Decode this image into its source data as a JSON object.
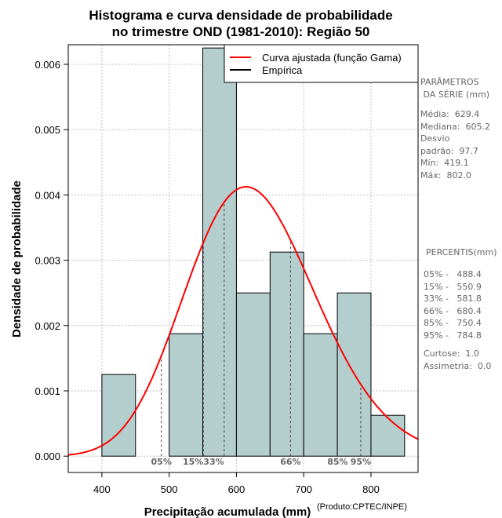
{
  "chart_data": {
    "type": "bar",
    "title": [
      "Histograma e curva densidade de probabilidade",
      "no trimestre OND (1981-2010): Região 50"
    ],
    "xlabel": "Precipitação acumulada (mm)",
    "ylabel": "Densidade de probabilidade",
    "xlim": [
      350,
      870
    ],
    "ylim": [
      -0.00025,
      0.0063
    ],
    "xticks": [
      400,
      500,
      600,
      700,
      800
    ],
    "yticks": [
      0.0,
      0.001,
      0.002,
      0.003,
      0.004,
      0.005,
      0.006
    ],
    "ytick_labels": [
      "0.000",
      "0.001",
      "0.002",
      "0.003",
      "0.004",
      "0.005",
      "0.006"
    ],
    "grid": true,
    "bins": [
      {
        "start": 400,
        "end": 450,
        "value": 0.00125
      },
      {
        "start": 500,
        "end": 550,
        "value": 0.001875
      },
      {
        "start": 550,
        "end": 600,
        "value": 0.00625
      },
      {
        "start": 600,
        "end": 650,
        "value": 0.0025
      },
      {
        "start": 650,
        "end": 700,
        "value": 0.003125
      },
      {
        "start": 700,
        "end": 750,
        "value": 0.001875
      },
      {
        "start": 750,
        "end": 800,
        "value": 0.0025
      },
      {
        "start": 800,
        "end": 850,
        "value": 0.000625
      }
    ],
    "bar_color": "#b4cdcd",
    "curve": {
      "name": "Curva ajustada (função Gama)",
      "color": "#ff0000",
      "mean": 629.4,
      "sd": 97.7
    },
    "empirical": {
      "name": "Empírica",
      "color": "#000000"
    },
    "legend": [
      "Curva ajustada (função Gama)",
      "Empírica"
    ],
    "legend_position": "top-right",
    "percentile_markers": [
      {
        "label": "05%",
        "x": 488.4
      },
      {
        "label": "15%",
        "x": 550.9
      },
      {
        "label": "33%",
        "x": 581.8
      },
      {
        "label": "66%",
        "x": 680.4
      },
      {
        "label": "85%",
        "x": 750.4
      },
      {
        "label": "95%",
        "x": 784.8
      }
    ]
  },
  "parametros": {
    "heading": "PARÂMETROS\n DA SÉRIE (mm)",
    "body": "Média:  629.4\nMediana:  605.2\nDesvio\npadrão:  97.7\nMín:  419.1\nMáx:  802.0"
  },
  "percentis": {
    "heading": "PERCENTIS(mm)",
    "body": "05% -   488.4\n15% -   550.9\n33% -   581.8\n66% -   680.4\n85% -   750.4\n95% -   784.8",
    "stats": "Curtose:  1.0\nAssimetria:  0.0"
  },
  "credit": "(Produto:CPTEC/INPE)"
}
